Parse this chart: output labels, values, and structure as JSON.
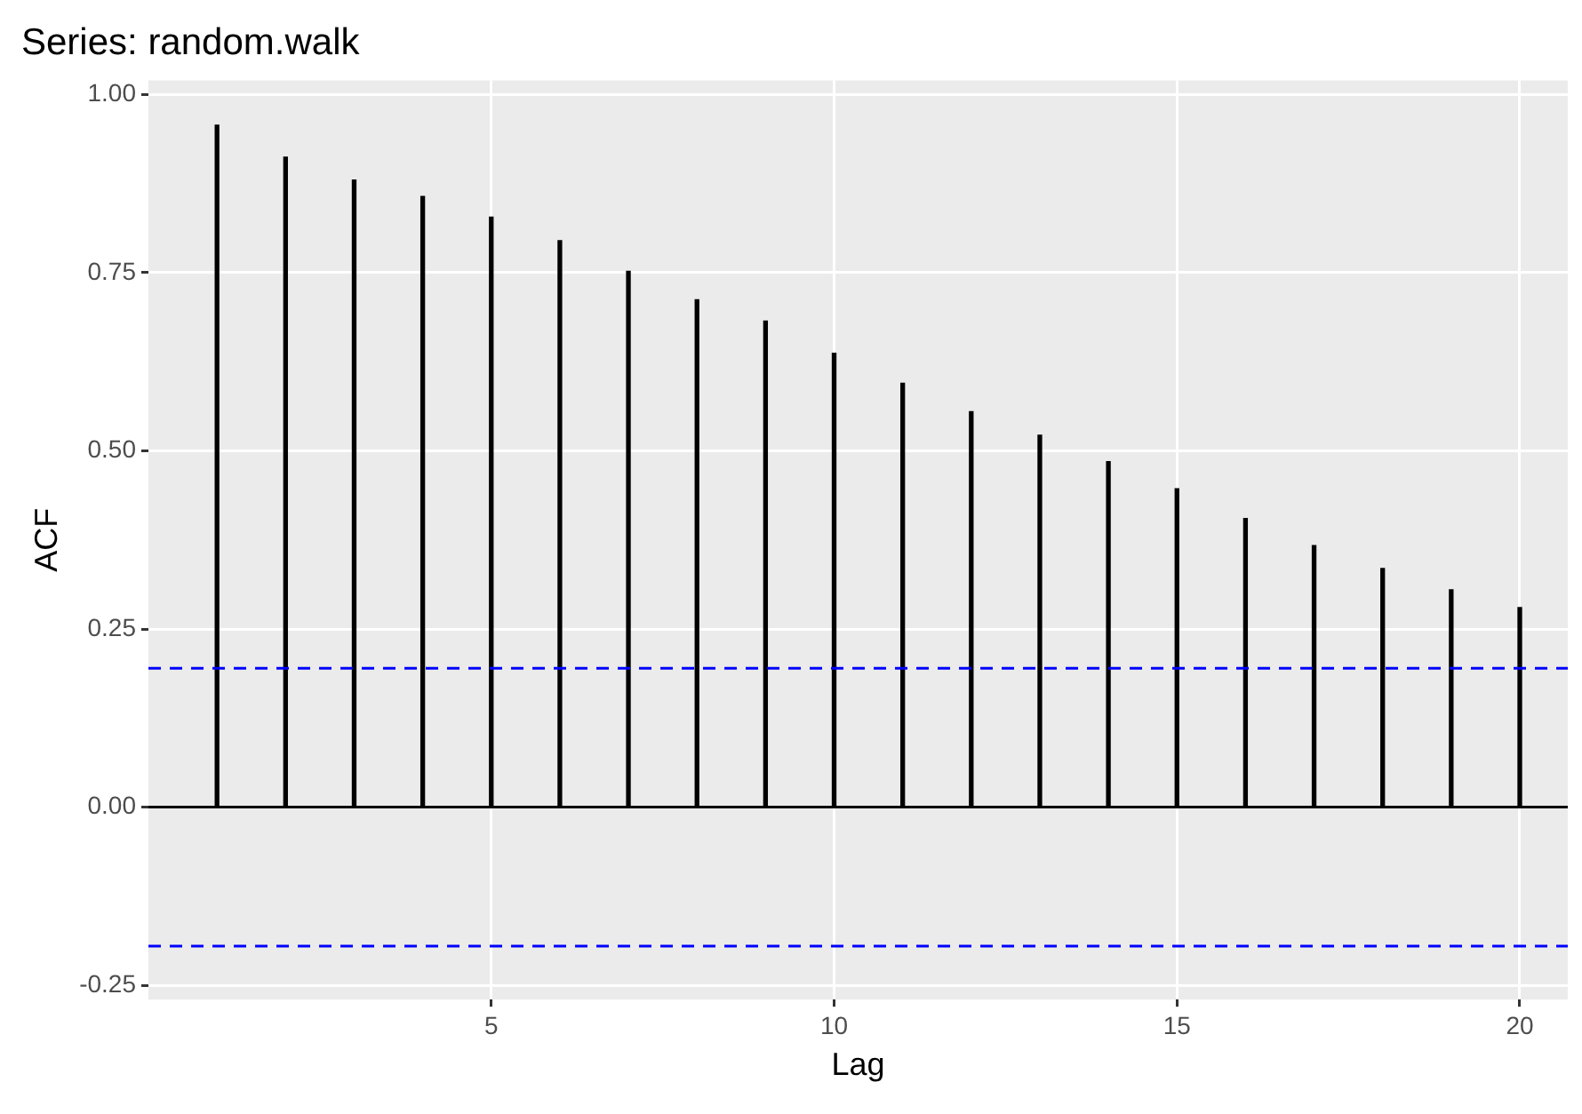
{
  "chart_data": {
    "type": "bar",
    "title": "Series: random.walk",
    "xlabel": "Lag",
    "ylabel": "ACF",
    "x": [
      1,
      2,
      3,
      4,
      5,
      6,
      7,
      8,
      9,
      10,
      11,
      12,
      13,
      14,
      15,
      16,
      17,
      18,
      19,
      20
    ],
    "values": [
      0.957,
      0.912,
      0.88,
      0.857,
      0.828,
      0.795,
      0.752,
      0.712,
      0.682,
      0.637,
      0.595,
      0.555,
      0.522,
      0.485,
      0.447,
      0.405,
      0.367,
      0.335,
      0.305,
      0.28
    ],
    "color": "#000000",
    "xlim": [
      0,
      20.7
    ],
    "xticks": [
      5,
      10,
      15,
      20
    ],
    "ylim": [
      -0.27,
      1.02
    ],
    "yticks": [
      {
        "value": -0.25,
        "label": "-0.25"
      },
      {
        "value": 0,
        "label": "0.00"
      },
      {
        "value": 0.25,
        "label": "0.25"
      },
      {
        "value": 0.5,
        "label": "0.50"
      },
      {
        "value": 0.75,
        "label": "0.75"
      },
      {
        "value": 1,
        "label": "1.00"
      }
    ],
    "grid": true,
    "ref_lines": [
      {
        "axis": "y",
        "value": 0,
        "color": "#000000",
        "line_style": "solid"
      },
      {
        "axis": "y",
        "value": 0.195,
        "color": "#0000ff",
        "line_style": "dashed"
      },
      {
        "axis": "y",
        "value": -0.195,
        "color": "#0000ff",
        "line_style": "dashed"
      }
    ]
  }
}
